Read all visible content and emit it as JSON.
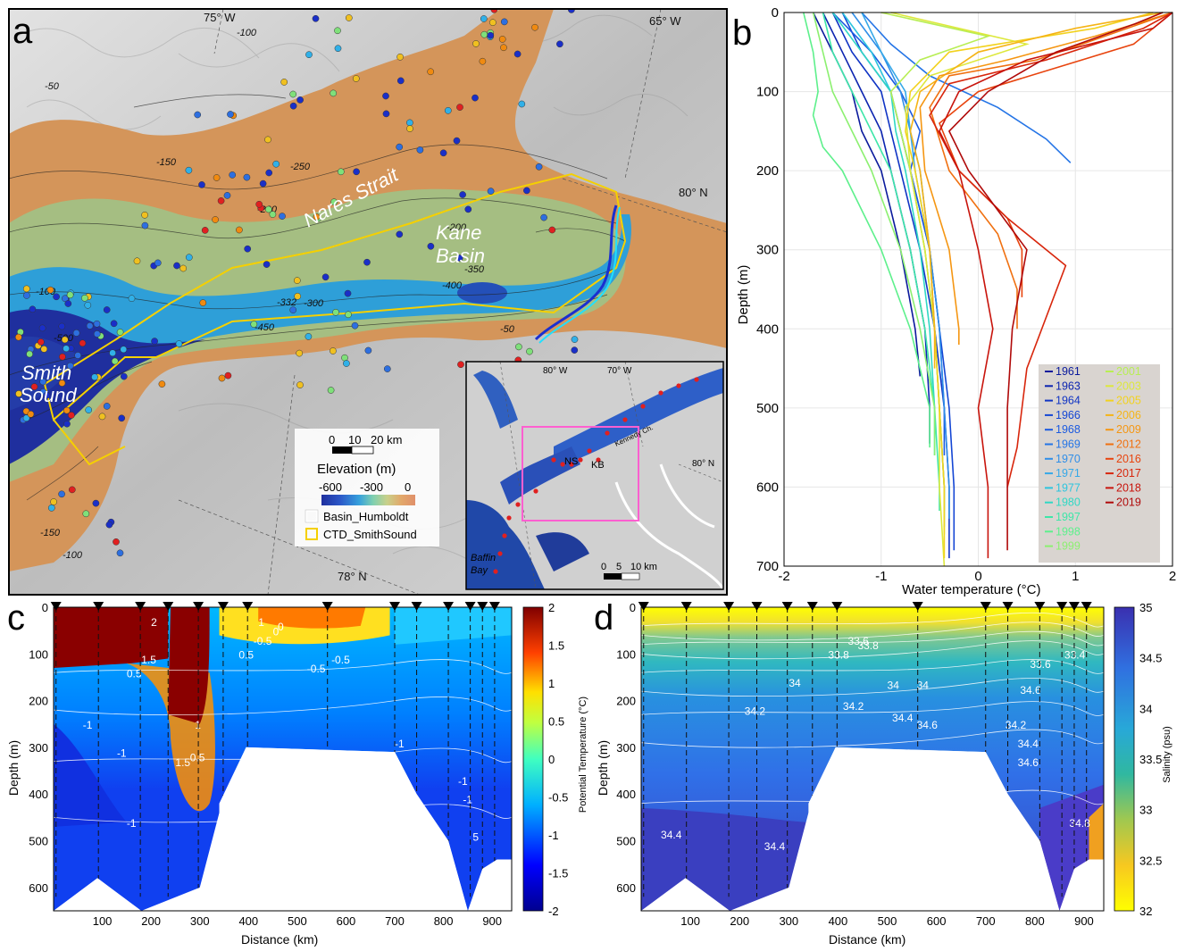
{
  "panels": {
    "a": {
      "letter": "a",
      "place_labels": {
        "nares": "Nares Strait",
        "kane1": "Kane",
        "kane2": "Basin",
        "smith1": "Smith",
        "smith2": "Sound"
      },
      "graticule": {
        "w75": "75° W",
        "w65": "65° W",
        "n80": "80° N",
        "n78": "78° N"
      },
      "contour_labels": [
        "-100",
        "-50",
        "-250",
        "-150",
        "-200",
        "-300",
        "-350",
        "-400",
        "-450",
        "-500",
        "-332"
      ],
      "legend": {
        "scale_0": "0",
        "scale_10": "10",
        "scale_20": "20 km",
        "title": "Elevation (m)",
        "tick_600": "-600",
        "tick_300": "-300",
        "tick_0": "0",
        "basin": "Basin_Humboldt",
        "ctd": "CTD_SmithSound"
      },
      "inset": {
        "w80": "80° W",
        "w70": "70° W",
        "n80": "80° N",
        "ns": "NS",
        "kb": "KB",
        "kennedy": "Kennedy Ch.",
        "baffin1": "Baffin",
        "baffin2": "Bay",
        "scale_0": "0",
        "scale_5": "5",
        "scale_10": "10 km"
      },
      "colors": {
        "deep": "#1f2f9e",
        "mid": "#2e9fd8",
        "shelf": "#d4955a",
        "land": "#c9c9c9",
        "basin": "#ffffff",
        "ctd": "#f5d000",
        "inset_frame": "#ff5fd0"
      }
    }
  },
  "chart_data": [
    {
      "panel": "b",
      "letter": "b",
      "type": "line",
      "xlabel": "Water temperature (°C)",
      "ylabel": "Depth (m)",
      "xlim": [
        -2,
        2
      ],
      "ylim": [
        0,
        700
      ],
      "y_inverted": true,
      "grid": true,
      "x_ticks": [
        "-2",
        "-1",
        "0",
        "1",
        "2"
      ],
      "y_ticks": [
        "0",
        "100",
        "200",
        "300",
        "400",
        "500",
        "600",
        "700"
      ],
      "legend_placement": "bottom-right",
      "series": [
        {
          "name": "1961",
          "color": "#0a1a9c",
          "depth": [
            0,
            50,
            100,
            150,
            200,
            300,
            400,
            460
          ],
          "temp": [
            -1.7,
            -1.5,
            -1.3,
            -1.2,
            -1.0,
            -0.8,
            -0.65,
            -0.6
          ]
        },
        {
          "name": "1963",
          "color": "#0c24b0",
          "depth": [
            0,
            50,
            100,
            150,
            200,
            300,
            400,
            500,
            545
          ],
          "temp": [
            -1.6,
            -1.4,
            -1.2,
            -1.0,
            -0.9,
            -0.7,
            -0.55,
            -0.5,
            -0.5
          ]
        },
        {
          "name": "1964",
          "color": "#1034c4",
          "depth": [
            0,
            50,
            100,
            150,
            200,
            300,
            400,
            500,
            600,
            690
          ],
          "temp": [
            -1.5,
            -1.3,
            -1.0,
            -0.9,
            -0.8,
            -0.6,
            -0.45,
            -0.35,
            -0.3,
            -0.3
          ]
        },
        {
          "name": "1966",
          "color": "#1446d4",
          "depth": [
            0,
            50,
            100,
            150,
            200,
            300,
            400,
            500,
            600,
            680
          ],
          "temp": [
            -1.4,
            -1.2,
            -0.9,
            -0.8,
            -0.7,
            -0.5,
            -0.4,
            -0.3,
            -0.25,
            -0.25
          ]
        },
        {
          "name": "1968",
          "color": "#1b5ae0",
          "depth": [
            0,
            50,
            100,
            150,
            200,
            300,
            400,
            500,
            560
          ],
          "temp": [
            -1.5,
            -1.1,
            -0.8,
            -0.6,
            -0.7,
            -0.5,
            -0.4,
            -0.35,
            -0.35
          ]
        },
        {
          "name": "1969",
          "color": "#2474e6",
          "depth": [
            0,
            40,
            80,
            120,
            160,
            190
          ],
          "temp": [
            -1.2,
            -0.9,
            -0.5,
            0.2,
            0.7,
            0.95
          ]
        },
        {
          "name": "1970",
          "color": "#2f8ee8",
          "depth": [
            0,
            50,
            100,
            150,
            200,
            300,
            400,
            500,
            600,
            640
          ],
          "temp": [
            -1.3,
            -1.0,
            -0.8,
            -0.7,
            -0.6,
            -0.5,
            -0.4,
            -0.35,
            -0.3,
            -0.3
          ]
        },
        {
          "name": "1971",
          "color": "#36a8e8",
          "depth": [
            0,
            50,
            100,
            150,
            200,
            300,
            400,
            500,
            600,
            650
          ],
          "temp": [
            -1.2,
            -1.0,
            -0.75,
            -0.7,
            -0.65,
            -0.5,
            -0.45,
            -0.4,
            -0.35,
            -0.35
          ]
        },
        {
          "name": "1977",
          "color": "#2cc4de",
          "depth": [
            0,
            50,
            100,
            150,
            200,
            300,
            400,
            500,
            600,
            630
          ],
          "temp": [
            -1.4,
            -1.1,
            -0.9,
            -0.8,
            -0.7,
            -0.55,
            -0.45,
            -0.4,
            -0.35,
            -0.35
          ]
        },
        {
          "name": "1980",
          "color": "#2fd8c4",
          "depth": [
            0,
            50,
            100,
            150,
            200,
            300,
            400,
            500,
            560
          ],
          "temp": [
            -1.5,
            -1.2,
            -0.9,
            -0.85,
            -0.75,
            -0.6,
            -0.5,
            -0.45,
            -0.45
          ]
        },
        {
          "name": "1997",
          "color": "#3ee6a8",
          "depth": [
            0,
            50,
            100,
            150,
            200,
            300,
            400,
            500,
            600,
            630
          ],
          "temp": [
            -1.6,
            -1.5,
            -1.3,
            -1.1,
            -0.9,
            -0.7,
            -0.55,
            -0.45,
            -0.4,
            -0.4
          ]
        },
        {
          "name": "1998",
          "color": "#5ef08c",
          "depth": [
            0,
            50,
            100,
            130,
            170,
            200,
            300,
            400,
            500,
            550
          ],
          "temp": [
            -1.8,
            -1.7,
            -1.65,
            -1.7,
            -1.6,
            -1.4,
            -1.0,
            -0.7,
            -0.5,
            -0.5
          ]
        },
        {
          "name": "1999",
          "color": "#8cf070",
          "depth": [
            0,
            50,
            100,
            150,
            200,
            300,
            400,
            500,
            560
          ],
          "temp": [
            -1.7,
            -1.6,
            -1.5,
            -1.3,
            -1.1,
            -0.8,
            -0.6,
            -0.45,
            -0.45
          ]
        },
        {
          "name": "2001",
          "color": "#b8ee54",
          "depth": [
            0,
            30,
            60,
            100,
            150,
            200,
            300,
            400,
            500,
            600,
            660
          ],
          "temp": [
            -1.0,
            0.1,
            -0.6,
            -0.9,
            -0.8,
            -0.7,
            -0.55,
            -0.45,
            -0.4,
            -0.35,
            -0.35
          ]
        },
        {
          "name": "2003",
          "color": "#dde83c",
          "depth": [
            0,
            40,
            80,
            120,
            200,
            300,
            400,
            500,
            600,
            700
          ],
          "temp": [
            -0.9,
            0.5,
            -0.5,
            -0.75,
            -0.7,
            -0.55,
            -0.45,
            -0.4,
            -0.4,
            -0.35
          ]
        },
        {
          "name": "2005",
          "color": "#f2d21e",
          "depth": [
            0,
            20,
            50,
            100,
            150,
            200,
            300,
            400,
            500,
            600,
            690
          ],
          "temp": [
            1.8,
            1.2,
            -0.3,
            -0.7,
            -0.75,
            -0.65,
            -0.5,
            -0.45,
            -0.4,
            -0.35,
            -0.35
          ]
        },
        {
          "name": "2006",
          "color": "#f5b416",
          "depth": [
            0,
            20,
            50,
            100,
            150,
            200,
            300,
            400,
            450
          ],
          "temp": [
            1.9,
            1.0,
            0.0,
            -0.6,
            -0.7,
            -0.6,
            -0.5,
            -0.45,
            -0.45
          ]
        },
        {
          "name": "2009",
          "color": "#f59612",
          "depth": [
            0,
            30,
            60,
            80,
            120,
            200,
            300,
            400,
            420
          ],
          "temp": [
            2.0,
            1.2,
            0.3,
            -0.4,
            -0.6,
            -0.55,
            -0.3,
            -0.2,
            -0.2
          ]
        },
        {
          "name": "2012",
          "color": "#f07010",
          "depth": [
            0,
            30,
            60,
            80,
            120,
            200,
            280,
            350,
            400
          ],
          "temp": [
            2.0,
            1.3,
            0.6,
            -0.3,
            -0.5,
            -0.3,
            0.2,
            0.4,
            0.4
          ]
        },
        {
          "name": "2016",
          "color": "#e8440e",
          "depth": [
            0,
            40,
            70,
            100,
            140,
            200,
            260,
            300,
            360
          ],
          "temp": [
            2.0,
            1.6,
            0.8,
            0.0,
            -0.4,
            -0.2,
            0.3,
            0.45,
            0.45
          ]
        },
        {
          "name": "2017",
          "color": "#d8260c",
          "depth": [
            0,
            20,
            60,
            90,
            130,
            200,
            260,
            320,
            450,
            550,
            600
          ],
          "temp": [
            2.0,
            1.7,
            0.7,
            -0.3,
            -0.5,
            -0.2,
            0.3,
            0.9,
            0.5,
            0.4,
            0.3
          ]
        },
        {
          "name": "2018",
          "color": "#c8140c",
          "depth": [
            0,
            20,
            60,
            100,
            150,
            200,
            300,
            400,
            500,
            600,
            690
          ],
          "temp": [
            2.0,
            1.8,
            0.5,
            -0.2,
            -0.4,
            -0.2,
            0.0,
            0.15,
            0.0,
            0.1,
            0.1
          ]
        },
        {
          "name": "2019",
          "color": "#b00a0a",
          "depth": [
            0,
            15,
            50,
            100,
            150,
            200,
            250,
            300,
            400,
            500,
            600,
            680
          ],
          "temp": [
            1.9,
            1.6,
            0.8,
            0.1,
            -0.3,
            -0.1,
            0.2,
            0.5,
            0.35,
            0.3,
            0.3,
            0.3
          ]
        }
      ]
    },
    {
      "panel": "c",
      "letter": "c",
      "type": "heatmap",
      "xlabel": "Distance (km)",
      "ylabel": "Depth (m)",
      "colorbar_label": "Potential Temperature (°C)",
      "xlim": [
        0,
        940
      ],
      "ylim": [
        0,
        650
      ],
      "y_inverted": true,
      "clim": [
        -2,
        2
      ],
      "x_ticks": [
        "100",
        "200",
        "300",
        "400",
        "500",
        "600",
        "700",
        "800",
        "900"
      ],
      "y_ticks": [
        "0",
        "100",
        "200",
        "300",
        "400",
        "500",
        "600"
      ],
      "cb_ticks": [
        "2",
        "1.5",
        "1",
        "0.5",
        "0",
        "-0.5",
        "-1",
        "-1.5",
        "-2"
      ],
      "stations_km": [
        5,
        92,
        178,
        235,
        297,
        348,
        398,
        562,
        700,
        745,
        810,
        855,
        880,
        905
      ],
      "bottom_km": [
        0,
        90,
        180,
        300,
        345,
        395,
        700,
        745,
        810,
        850,
        880,
        910,
        940
      ],
      "bottom_depth_m": [
        650,
        580,
        650,
        600,
        420,
        300,
        310,
        400,
        500,
        650,
        560,
        540,
        540
      ],
      "contour_labels": [
        "2",
        "1.5",
        "1",
        "0.5",
        "0",
        "-0.5",
        "-1",
        "1.5",
        "0.5",
        "1",
        "0.5",
        "0",
        "-0.5",
        "-1",
        "-1",
        "-0.5",
        "-1",
        "-1",
        "-1",
        "5"
      ]
    },
    {
      "panel": "d",
      "letter": "d",
      "type": "heatmap",
      "xlabel": "Distance (km)",
      "ylabel": "Depth (m)",
      "colorbar_label": "Salinity (psu)",
      "xlim": [
        0,
        940
      ],
      "ylim": [
        0,
        650
      ],
      "y_inverted": true,
      "clim": [
        32,
        35
      ],
      "x_ticks": [
        "100",
        "200",
        "300",
        "400",
        "500",
        "600",
        "700",
        "800",
        "900"
      ],
      "y_ticks": [
        "0",
        "100",
        "200",
        "300",
        "400",
        "500",
        "600"
      ],
      "cb_ticks": [
        "35",
        "34.5",
        "34",
        "33.5",
        "33",
        "32.5",
        "32"
      ],
      "stations_km": [
        5,
        92,
        178,
        235,
        297,
        348,
        398,
        562,
        700,
        745,
        810,
        855,
        880,
        905
      ],
      "bottom_km": [
        0,
        90,
        180,
        300,
        345,
        395,
        700,
        745,
        810,
        850,
        880,
        910,
        940
      ],
      "bottom_depth_m": [
        650,
        580,
        650,
        600,
        420,
        300,
        310,
        400,
        500,
        650,
        560,
        540,
        540
      ],
      "contour_labels": [
        "33.8",
        "33.6",
        "33.4",
        "33.8",
        "34",
        "34",
        "34.2",
        "34.2",
        "34.4",
        "34.6",
        "34.2",
        "34.4",
        "34.6",
        "34.4",
        "34.4",
        "34.8",
        "34.6",
        "34",
        "33.6"
      ]
    }
  ]
}
